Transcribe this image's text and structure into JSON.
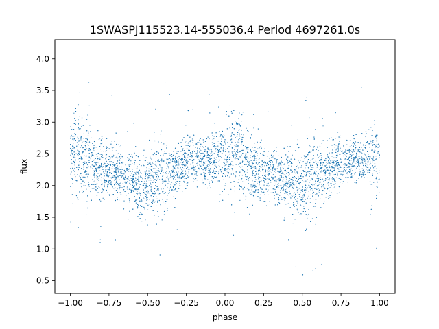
{
  "chart_data": {
    "type": "scatter",
    "title": "1SWASPJ115523.14-555036.4 Period 4697261.0s",
    "xlabel": "phase",
    "ylabel": "flux",
    "xlim": [
      -1.1,
      1.1
    ],
    "ylim": [
      0.3,
      4.3
    ],
    "x_ticks": [
      -1.0,
      -0.75,
      -0.5,
      -0.25,
      0.0,
      0.25,
      0.5,
      0.75,
      1.0
    ],
    "x_tick_labels": [
      "−1.00",
      "−0.75",
      "−0.50",
      "−0.25",
      "0.00",
      "0.25",
      "0.50",
      "0.75",
      "1.00"
    ],
    "y_ticks": [
      0.5,
      1.0,
      1.5,
      2.0,
      2.5,
      3.0,
      3.5,
      4.0
    ],
    "y_tick_labels": [
      "0.5",
      "1.0",
      "1.5",
      "2.0",
      "2.5",
      "3.0",
      "3.5",
      "4.0"
    ],
    "grid": false,
    "legend": "none",
    "marker_color": "#1f77b4",
    "series": [
      {
        "x": [
          -1.0,
          -0.95,
          -0.9,
          -0.85,
          -0.8,
          -0.75,
          -0.7,
          -0.65,
          -0.6,
          -0.55,
          -0.5,
          -0.45,
          -0.4,
          -0.35,
          -0.3,
          -0.25,
          -0.2,
          -0.15,
          -0.1,
          -0.05,
          0.0,
          0.05,
          0.1,
          0.15,
          0.2,
          0.25,
          0.3,
          0.35,
          0.4,
          0.45,
          0.5,
          0.55,
          0.6,
          0.65,
          0.7,
          0.75,
          0.8,
          0.85,
          0.9,
          0.95,
          1.0
        ],
        "y": [
          2.45,
          2.5,
          2.45,
          2.3,
          2.25,
          2.25,
          2.2,
          2.15,
          2.1,
          2.0,
          2.0,
          2.1,
          2.15,
          2.2,
          2.3,
          2.35,
          2.4,
          2.4,
          2.4,
          2.45,
          2.45,
          2.5,
          2.45,
          2.3,
          2.25,
          2.25,
          2.2,
          2.15,
          2.1,
          2.0,
          2.0,
          2.1,
          2.15,
          2.2,
          2.3,
          2.35,
          2.4,
          2.4,
          2.4,
          2.45,
          2.45
        ],
        "spread": [
          0.35,
          0.4,
          0.45,
          0.3,
          0.3,
          0.25,
          0.25,
          0.25,
          0.25,
          0.3,
          0.35,
          0.4,
          0.4,
          0.3,
          0.25,
          0.25,
          0.2,
          0.2,
          0.25,
          0.3,
          0.35,
          0.4,
          0.45,
          0.3,
          0.3,
          0.25,
          0.25,
          0.25,
          0.25,
          0.3,
          0.35,
          0.4,
          0.4,
          0.3,
          0.25,
          0.25,
          0.2,
          0.2,
          0.25,
          0.3,
          0.35
        ]
      }
    ]
  }
}
